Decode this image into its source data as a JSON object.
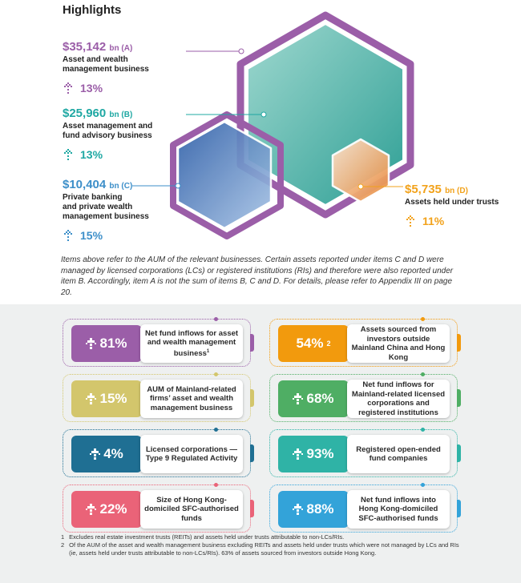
{
  "title": "Highlights",
  "metrics": [
    {
      "value": "$35,142",
      "unit": "bn (A)",
      "label1": "Asset and wealth",
      "label2": "management business",
      "label3": "",
      "change": "13%",
      "color": "#9b5ea8"
    },
    {
      "value": "$25,960",
      "unit": "bn (B)",
      "label1": "Asset management and",
      "label2": "fund advisory business",
      "label3": "",
      "change": "13%",
      "color": "#1fa8a3"
    },
    {
      "value": "$10,404",
      "unit": "bn (C)",
      "label1": "Private banking",
      "label2": "and private wealth",
      "label3": "management business",
      "change": "15%",
      "color": "#3d8fc9"
    },
    {
      "value": "$5,735",
      "unit": "bn (D)",
      "label1": "Assets held under trusts",
      "label2": "",
      "label3": "",
      "change": "11%",
      "color": "#f2a21b"
    }
  ],
  "note": "Items above refer to the AUM of the relevant businesses. Certain assets reported under items C and D were managed by licensed corporations (LCs) or registered institutions (RIs) and therefore were also reported under item B. Accordingly, item A is not the sum of items B, C and D. For details, please refer to Appendix III on page 20.",
  "cards": [
    {
      "value": "81%",
      "sup": "",
      "text": "Net fund inflows for asset and wealth management business",
      "text_sup": "1",
      "color": "#9b5ea8",
      "arrow": true
    },
    {
      "value": "54%",
      "sup": "2",
      "text": "Assets sourced from investors outside Mainland China and Hong Kong",
      "text_sup": "",
      "color": "#f29a0d",
      "arrow": false
    },
    {
      "value": "15%",
      "sup": "",
      "text": "AUM of Mainland-related firms’ asset and wealth management business",
      "text_sup": "",
      "color": "#d3c66c",
      "arrow": true
    },
    {
      "value": "68%",
      "sup": "",
      "text": "Net fund inflows for Mainland-related licensed corporations and registered institutions",
      "text_sup": "",
      "color": "#4fae64",
      "arrow": true
    },
    {
      "value": "4%",
      "sup": "",
      "text": "Licensed corporations — Type 9 Regulated Activity",
      "text_sup": "",
      "color": "#1f6f93",
      "arrow": true
    },
    {
      "value": "93%",
      "sup": "",
      "text": "Registered open-ended fund companies",
      "text_sup": "",
      "color": "#2fb3a6",
      "arrow": true
    },
    {
      "value": "22%",
      "sup": "",
      "text": "Size of Hong Kong-domiciled SFC-authorised funds",
      "text_sup": "",
      "color": "#ea6378",
      "arrow": true
    },
    {
      "value": "88%",
      "sup": "",
      "text": "Net fund inflows into Hong Kong-domiciled SFC-authorised funds",
      "text_sup": "",
      "color": "#33a3d9",
      "arrow": true
    }
  ],
  "footnotes": [
    {
      "mark": "1",
      "text": "Excludes real estate investment trusts (REITs) and assets held under trusts attributable to non-LCs/RIs."
    },
    {
      "mark": "2",
      "text": "Of the AUM of the asset and wealth management business excluding REITs and assets held under trusts which were not managed by LCs and RIs (ie, assets held under trusts attributable to non-LCs/RIs). 63% of assets sourced from investors outside Hong Kong."
    }
  ]
}
